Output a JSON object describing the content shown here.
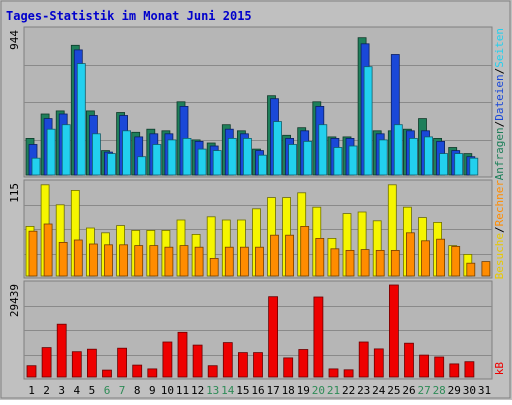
{
  "chart_data": [
    {
      "type": "bar",
      "title": "Tages-Statistik im Monat Juni 2015",
      "panel": "top",
      "ytick_top": "944",
      "ylim": [
        0,
        944
      ],
      "grid": true,
      "categories": [
        "1",
        "2",
        "3",
        "4",
        "5",
        "6",
        "7",
        "8",
        "9",
        "10",
        "11",
        "12",
        "13",
        "14",
        "15",
        "16",
        "17",
        "18",
        "19",
        "20",
        "21",
        "22",
        "23",
        "24",
        "25",
        "26",
        "27",
        "28",
        "29",
        "30",
        "31"
      ],
      "weekend_days": [
        "6",
        "7",
        "13",
        "14",
        "20",
        "21",
        "27",
        "28"
      ],
      "series": [
        {
          "name": "Anfragen",
          "color": "#1e7f5a",
          "values": [
            240,
            400,
            420,
            850,
            420,
            160,
            410,
            280,
            300,
            290,
            480,
            230,
            210,
            330,
            290,
            170,
            520,
            260,
            310,
            480,
            250,
            250,
            900,
            290,
            290,
            300,
            370,
            240,
            180,
            140,
            0
          ]
        },
        {
          "name": "Dateien",
          "color": "#1a48d8",
          "values": [
            200,
            370,
            400,
            820,
            390,
            150,
            390,
            250,
            270,
            270,
            450,
            220,
            190,
            300,
            270,
            160,
            500,
            240,
            290,
            450,
            240,
            240,
            860,
            270,
            790,
            290,
            290,
            220,
            160,
            120,
            0
          ]
        },
        {
          "name": "Seiten",
          "color": "#22d0ee",
          "values": [
            110,
            300,
            330,
            730,
            270,
            140,
            290,
            120,
            200,
            230,
            240,
            170,
            160,
            240,
            240,
            130,
            350,
            200,
            220,
            330,
            180,
            190,
            710,
            230,
            330,
            240,
            250,
            140,
            140,
            110,
            0
          ]
        }
      ]
    },
    {
      "type": "bar",
      "panel": "middle",
      "ytick_top": "115",
      "ylim": [
        0,
        115
      ],
      "grid": true,
      "categories": [
        "1",
        "2",
        "3",
        "4",
        "5",
        "6",
        "7",
        "8",
        "9",
        "10",
        "11",
        "12",
        "13",
        "14",
        "15",
        "16",
        "17",
        "18",
        "19",
        "20",
        "21",
        "22",
        "23",
        "24",
        "25",
        "26",
        "27",
        "28",
        "29",
        "30",
        "31"
      ],
      "series": [
        {
          "name": "Besuche",
          "color": "#f5f500",
          "values": [
            62,
            114,
            89,
            107,
            60,
            54,
            63,
            57,
            57,
            57,
            70,
            52,
            74,
            70,
            70,
            84,
            98,
            98,
            104,
            86,
            47,
            78,
            80,
            69,
            114,
            86,
            73,
            67,
            38,
            27,
            0
          ]
        },
        {
          "name": "Rechner",
          "color": "#ff8c00",
          "values": [
            56,
            65,
            42,
            45,
            40,
            39,
            39,
            38,
            38,
            36,
            38,
            36,
            22,
            36,
            36,
            36,
            51,
            51,
            62,
            47,
            34,
            32,
            33,
            32,
            32,
            54,
            44,
            46,
            37,
            16,
            18
          ]
        }
      ]
    },
    {
      "type": "bar",
      "panel": "bottom",
      "ytick_top": "29439",
      "ylim": [
        0,
        29439
      ],
      "grid": true,
      "categories": [
        "1",
        "2",
        "3",
        "4",
        "5",
        "6",
        "7",
        "8",
        "9",
        "10",
        "11",
        "12",
        "13",
        "14",
        "15",
        "16",
        "17",
        "18",
        "19",
        "20",
        "21",
        "22",
        "23",
        "24",
        "25",
        "26",
        "27",
        "28",
        "29",
        "30",
        "31"
      ],
      "series": [
        {
          "name": "kB",
          "color": "#ee0000",
          "values": [
            3600,
            9400,
            16900,
            8100,
            8900,
            2200,
            9200,
            3800,
            2600,
            11200,
            14300,
            10200,
            3600,
            11000,
            7800,
            7800,
            25700,
            6100,
            8800,
            25600,
            2600,
            2300,
            11200,
            9000,
            29439,
            10800,
            7000,
            6400,
            4200,
            4900,
            0
          ]
        }
      ]
    }
  ],
  "legend_right_top": [
    "Anfragen",
    "/",
    "Dateien",
    "/",
    "Seiten"
  ],
  "legend_right_mid": [
    "Besuche",
    "/",
    "Rechner"
  ],
  "legend_right_bot": [
    "kB"
  ],
  "colors": {
    "background": "#c0c0c0",
    "plot_bg": "#b6b6b6",
    "frame": "#7f7f7f",
    "title": "#0000cc",
    "weekday_label": "#000000",
    "weekend_label": "#2e8b57",
    "legend_anfragen": "#1e7f5a",
    "legend_dateien": "#1a48d8",
    "legend_seiten": "#22d0ee",
    "legend_besuche": "#e8c800",
    "legend_rechner": "#ff8c00",
    "legend_kb": "#ee0000",
    "legend_sep": "#000000"
  }
}
